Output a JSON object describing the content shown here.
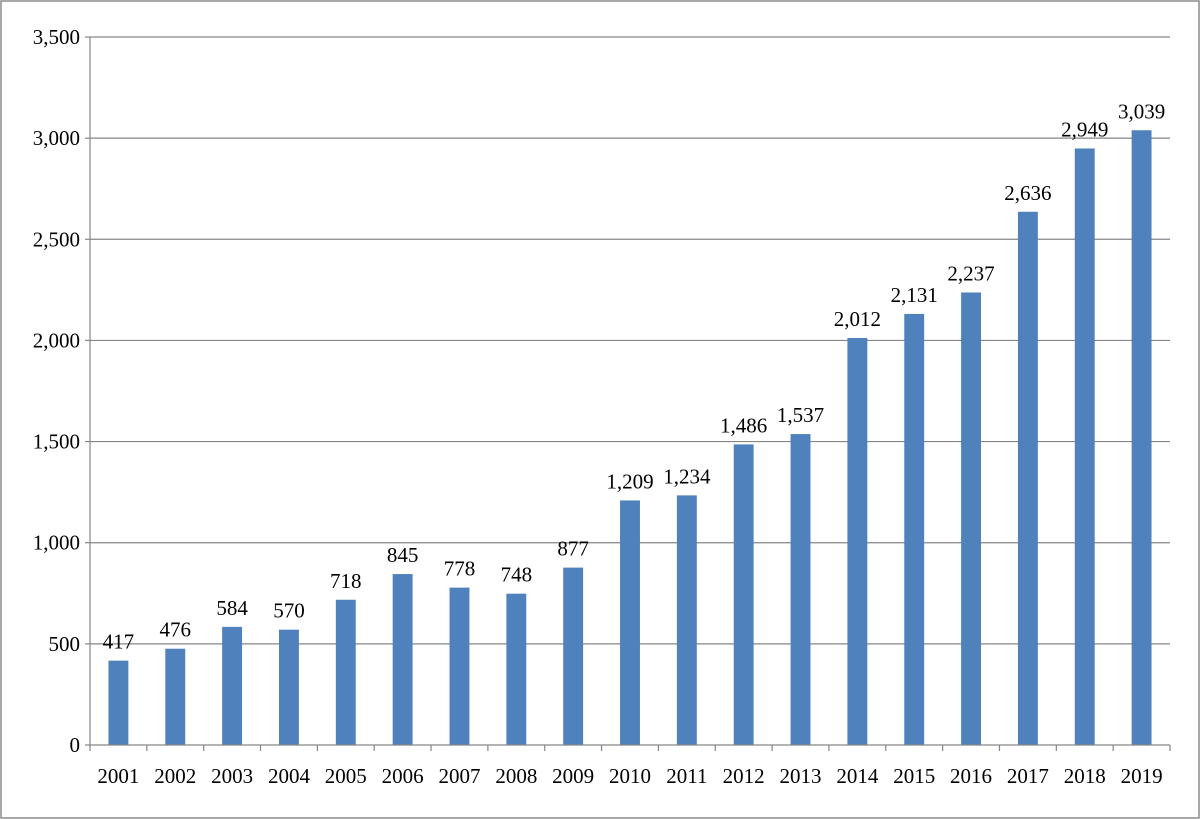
{
  "chart_data": {
    "type": "bar",
    "title": "",
    "xlabel": "",
    "ylabel": "",
    "categories": [
      "2001",
      "2002",
      "2003",
      "2004",
      "2005",
      "2006",
      "2007",
      "2008",
      "2009",
      "2010",
      "2011",
      "2012",
      "2013",
      "2014",
      "2015",
      "2016",
      "2017",
      "2018",
      "2019"
    ],
    "values": [
      417,
      476,
      584,
      570,
      718,
      845,
      778,
      748,
      877,
      1209,
      1234,
      1486,
      1537,
      2012,
      2131,
      2237,
      2636,
      2949,
      3039
    ],
    "data_labels": [
      "417",
      "476",
      "584",
      "570",
      "718",
      "845",
      "778",
      "748",
      "877",
      "1,209",
      "1,234",
      "1,486",
      "1,537",
      "2,012",
      "2,131",
      "2,237",
      "2,636",
      "2,949",
      "3,039"
    ],
    "ylim": [
      0,
      3500
    ],
    "y_ticks": [
      0,
      500,
      1000,
      1500,
      2000,
      2500,
      3000,
      3500
    ],
    "y_tick_labels": [
      "0",
      "500",
      "1,000",
      "1,500",
      "2,000",
      "2,500",
      "3,000",
      "3,500"
    ],
    "grid": true,
    "legend": "none",
    "colors": {
      "bar": "#4f81bd",
      "grid": "#868686",
      "text": "#000000"
    }
  }
}
